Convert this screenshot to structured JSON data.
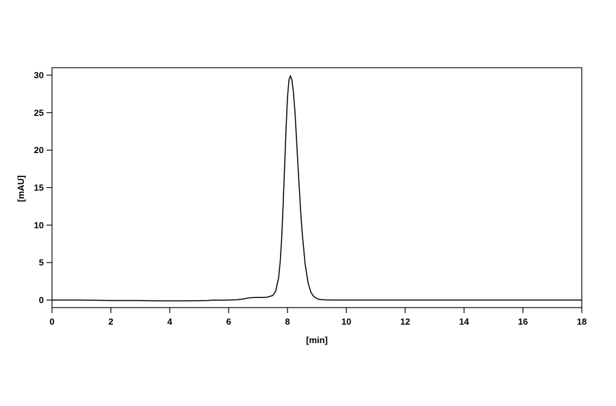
{
  "chart_data": {
    "type": "line",
    "title": "",
    "xlabel": "[min]",
    "ylabel": "[mAU]",
    "xlim": [
      0,
      18
    ],
    "ylim": [
      -1,
      31
    ],
    "xticks": [
      0,
      2,
      4,
      6,
      8,
      10,
      12,
      14,
      16,
      18
    ],
    "yticks": [
      0,
      5,
      10,
      15,
      20,
      25,
      30
    ],
    "grid": false,
    "line_color": "#000000",
    "series": [
      {
        "x": [
          0,
          1,
          2,
          3,
          3.5,
          4,
          4.5,
          5,
          5.3,
          5.5,
          5.8,
          6,
          6.3,
          6.5,
          6.7,
          6.9,
          7.1,
          7.3,
          7.5,
          7.6,
          7.7,
          7.75,
          7.8,
          7.85,
          7.9,
          7.95,
          8.0,
          8.05,
          8.1,
          8.15,
          8.2,
          8.25,
          8.3,
          8.35,
          8.4,
          8.45,
          8.5,
          8.6,
          8.7,
          8.8,
          8.9,
          9.0,
          9.1,
          9.3,
          9.6,
          10,
          12,
          14,
          16,
          18
        ],
        "y": [
          0,
          0,
          -0.05,
          -0.05,
          -0.1,
          -0.1,
          -0.1,
          -0.08,
          -0.05,
          0,
          -0.02,
          0,
          0.05,
          0.15,
          0.3,
          0.35,
          0.35,
          0.38,
          0.6,
          1.2,
          3.0,
          5.0,
          8.0,
          12.5,
          17.5,
          22.5,
          27,
          29.4,
          29.9,
          29.4,
          27.8,
          25.3,
          22,
          18.5,
          15,
          11.8,
          9.0,
          4.8,
          2.3,
          1.0,
          0.45,
          0.2,
          0.08,
          0.02,
          0,
          0,
          0,
          0,
          0,
          0
        ]
      }
    ]
  }
}
